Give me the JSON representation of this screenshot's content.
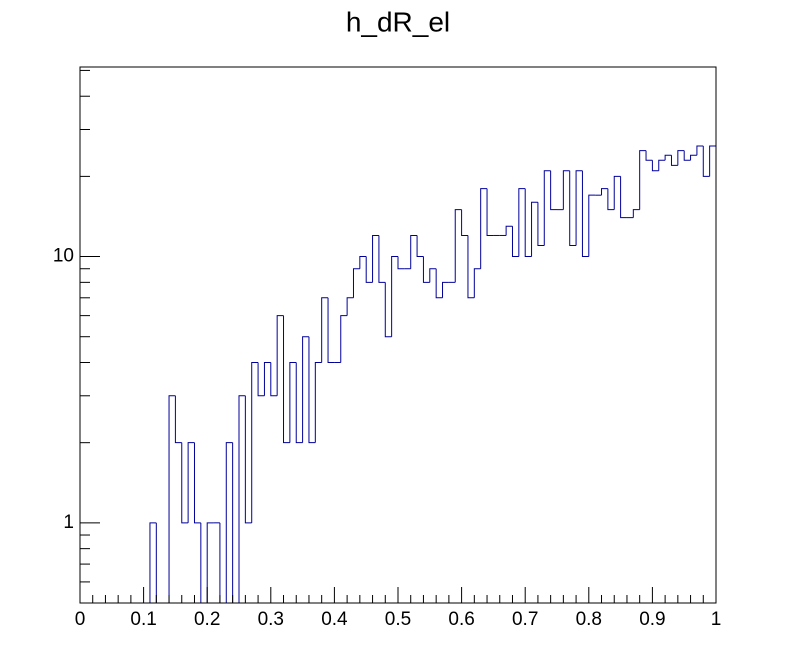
{
  "chart_data": {
    "type": "histogram",
    "title": "h_dR_el",
    "bins": [
      0,
      0.01,
      0.02,
      0.03,
      0.04,
      0.05,
      0.06,
      0.07,
      0.08,
      0.09,
      0.1,
      0.11,
      0.12,
      0.13,
      0.14,
      0.15,
      0.16,
      0.17,
      0.18,
      0.19,
      0.2,
      0.21,
      0.22,
      0.23,
      0.24,
      0.25,
      0.26,
      0.27,
      0.28,
      0.29,
      0.3,
      0.31,
      0.32,
      0.33,
      0.34,
      0.35,
      0.36,
      0.37,
      0.38,
      0.39,
      0.4,
      0.41,
      0.42,
      0.43,
      0.44,
      0.45,
      0.46,
      0.47,
      0.48,
      0.49,
      0.5,
      0.51,
      0.52,
      0.53,
      0.54,
      0.55,
      0.56,
      0.57,
      0.58,
      0.59,
      0.6,
      0.61,
      0.62,
      0.63,
      0.64,
      0.65,
      0.66,
      0.67,
      0.68,
      0.69,
      0.7,
      0.71,
      0.72,
      0.73,
      0.74,
      0.75,
      0.76,
      0.77,
      0.78,
      0.79,
      0.8,
      0.81,
      0.82,
      0.83,
      0.84,
      0.85,
      0.86,
      0.87,
      0.88,
      0.89,
      0.9,
      0.91,
      0.92,
      0.93,
      0.94,
      0.95,
      0.96,
      0.97,
      0.98,
      0.99,
      1
    ],
    "values": [
      0,
      0,
      0,
      0,
      0,
      0,
      0,
      0,
      0,
      0,
      0,
      1,
      0,
      0,
      3,
      2,
      1,
      2,
      1,
      0,
      1,
      1,
      0,
      2,
      0,
      3,
      1,
      4,
      3,
      4,
      3,
      6,
      2,
      4,
      2,
      5,
      2,
      4,
      7,
      4,
      4,
      6,
      7,
      9,
      10,
      8,
      12,
      8,
      5,
      10,
      9,
      9,
      12,
      10,
      8,
      9,
      7,
      8,
      8,
      15,
      12,
      7,
      9,
      18,
      12,
      12,
      12,
      13,
      10,
      18,
      10,
      16,
      11,
      21,
      15,
      15,
      21,
      11,
      21,
      10,
      17,
      17,
      18,
      15,
      20,
      14,
      14,
      15,
      25,
      23,
      21,
      23,
      24,
      22,
      25,
      23,
      24,
      26,
      20,
      26
    ],
    "color": "#000099",
    "xlim": [
      0,
      1
    ],
    "xticks": [
      0,
      0.1,
      0.2,
      0.3,
      0.4,
      0.5,
      0.6,
      0.7,
      0.8,
      0.9,
      1
    ],
    "ylim": [
      0.5,
      51.5
    ],
    "yticks": [
      1,
      10
    ],
    "log_y": true
  }
}
